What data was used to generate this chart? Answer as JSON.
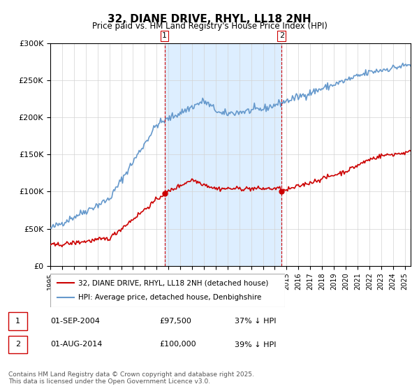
{
  "title": "32, DIANE DRIVE, RHYL, LL18 2NH",
  "subtitle": "Price paid vs. HM Land Registry's House Price Index (HPI)",
  "legend_line1": "32, DIANE DRIVE, RHYL, LL18 2NH (detached house)",
  "legend_line2": "HPI: Average price, detached house, Denbighshire",
  "annotation1_date": "01-SEP-2004",
  "annotation1_price": "£97,500",
  "annotation1_hpi": "37% ↓ HPI",
  "annotation2_date": "01-AUG-2014",
  "annotation2_price": "£100,000",
  "annotation2_hpi": "39% ↓ HPI",
  "footnote": "Contains HM Land Registry data © Crown copyright and database right 2025.\nThis data is licensed under the Open Government Licence v3.0.",
  "red_color": "#cc0000",
  "blue_color": "#6699cc",
  "vline_color": "#cc0000",
  "bg_color": "#ddeeff",
  "sale1_x": 2004.67,
  "sale2_x": 2014.58,
  "ylim_min": 0,
  "ylim_max": 300000,
  "xlim_min": 1995,
  "xlim_max": 2025.5
}
